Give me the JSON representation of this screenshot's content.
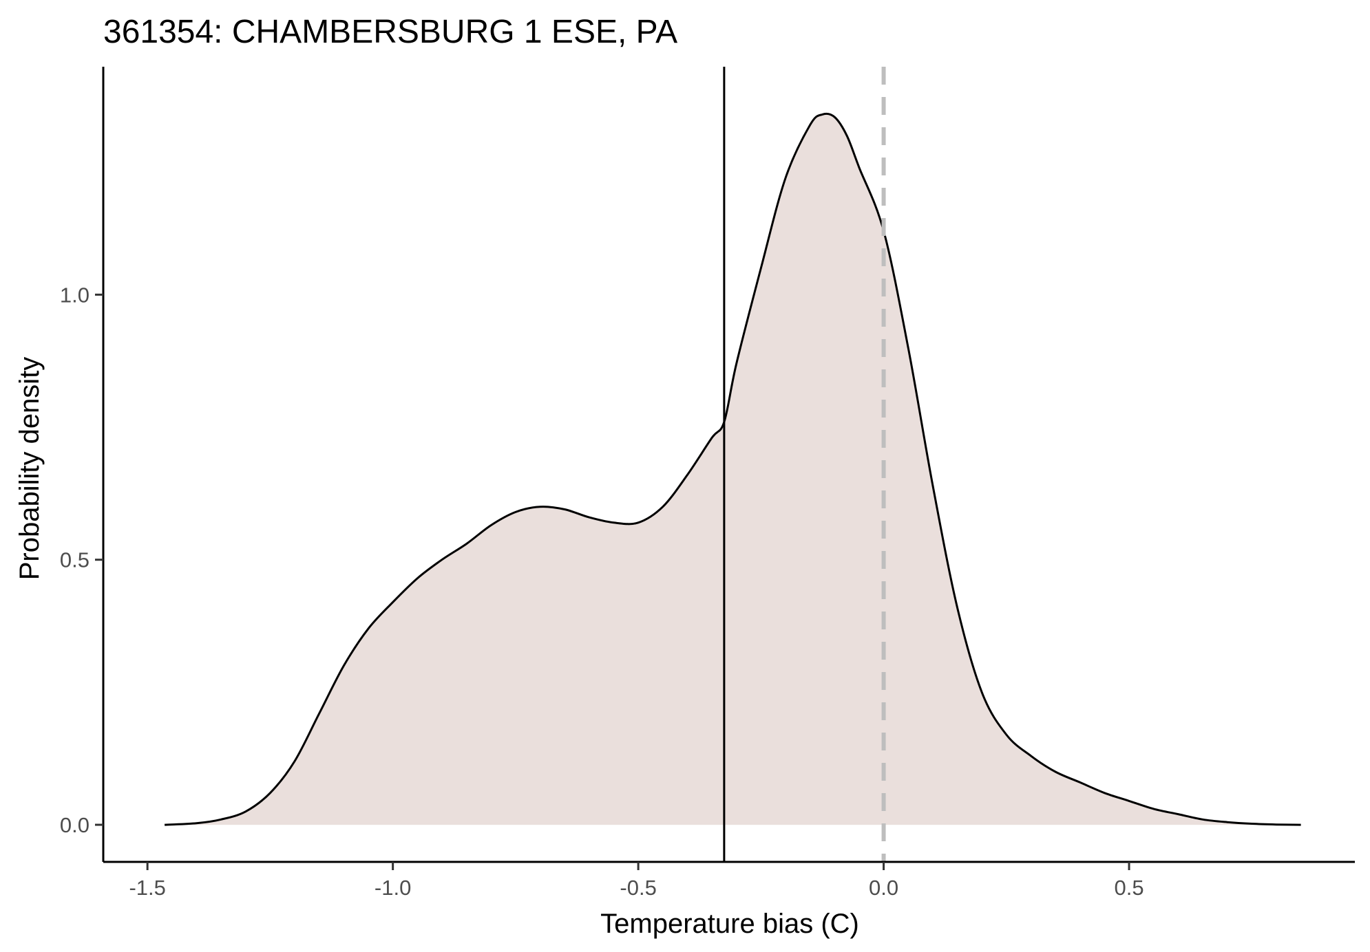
{
  "chart_data": {
    "type": "area",
    "title": "361354: CHAMBERSBURG 1 ESE, PA",
    "xlabel": "Temperature bias (C)",
    "ylabel": "Probability density",
    "xlim": [
      -1.59,
      0.96
    ],
    "ylim": [
      -0.07,
      1.43
    ],
    "x_ticks": [
      -1.5,
      -1.0,
      -0.5,
      0.0,
      0.5
    ],
    "x_tick_labels": [
      "-1.5",
      "-1.0",
      "-0.5",
      "0.0",
      "0.5"
    ],
    "y_ticks": [
      0.0,
      0.5,
      1.0
    ],
    "y_tick_labels": [
      "0.0",
      "0.5",
      "1.0"
    ],
    "grid": false,
    "fill_color": "#eadfdc",
    "line_color": "#000000",
    "reference_lines": [
      {
        "x": -0.325,
        "style": "solid",
        "color": "#000000"
      },
      {
        "x": 0.0,
        "style": "dashed",
        "color": "#bebebe"
      }
    ],
    "series": [
      {
        "x": [
          -1.465,
          -1.4,
          -1.35,
          -1.3,
          -1.25,
          -1.2,
          -1.15,
          -1.1,
          -1.05,
          -1.0,
          -0.95,
          -0.9,
          -0.85,
          -0.8,
          -0.75,
          -0.7,
          -0.65,
          -0.6,
          -0.55,
          -0.5,
          -0.45,
          -0.4,
          -0.35,
          -0.325,
          -0.3,
          -0.25,
          -0.2,
          -0.15,
          -0.125,
          -0.1,
          -0.075,
          -0.05,
          0.0,
          0.05,
          0.1,
          0.15,
          0.2,
          0.25,
          0.3,
          0.35,
          0.4,
          0.45,
          0.5,
          0.55,
          0.6,
          0.65,
          0.7,
          0.75,
          0.8,
          0.85
        ],
        "y": [
          0.0,
          0.003,
          0.01,
          0.025,
          0.06,
          0.12,
          0.21,
          0.3,
          0.37,
          0.42,
          0.465,
          0.5,
          0.53,
          0.565,
          0.59,
          0.6,
          0.595,
          0.58,
          0.57,
          0.57,
          0.6,
          0.66,
          0.73,
          0.76,
          0.87,
          1.05,
          1.22,
          1.32,
          1.34,
          1.335,
          1.3,
          1.24,
          1.12,
          0.9,
          0.64,
          0.41,
          0.25,
          0.17,
          0.13,
          0.1,
          0.08,
          0.06,
          0.045,
          0.03,
          0.02,
          0.01,
          0.005,
          0.002,
          0.0005,
          0.0
        ]
      }
    ]
  }
}
